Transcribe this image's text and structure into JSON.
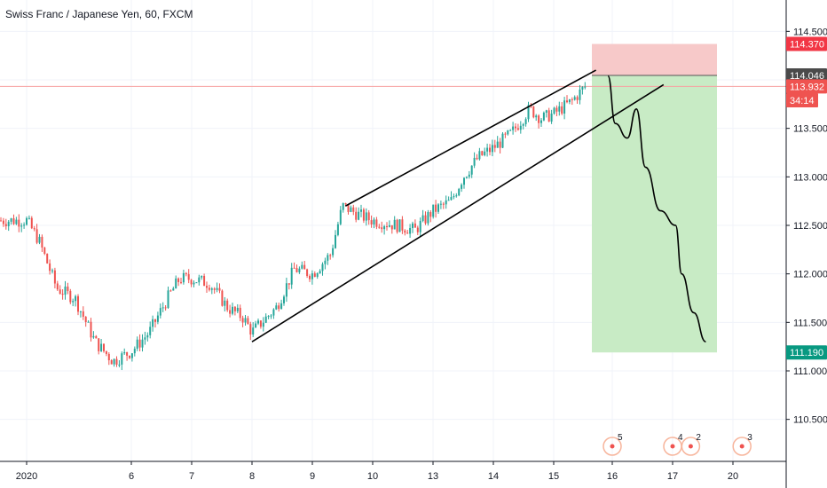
{
  "chart_title": "Swiss Franc / Japanese Yen, 60, FXCM",
  "colors": {
    "up": "#26a69a",
    "down": "#ef5350",
    "grid": "#f0f3fa",
    "axis": "#131722",
    "stop_zone": "#f7c9c9",
    "target_zone": "#c8ebc5",
    "entry_tag": "#4a4a4a",
    "stop_tag": "#f23645",
    "target_tag": "#089981",
    "price_tag": "#ef5350",
    "price_line": "#f7a1a1"
  },
  "chart_data": {
    "type": "candlestick",
    "title": "Swiss Franc / Japanese Yen, 60, FXCM",
    "x_tick_labels": [
      "2020",
      "6",
      "7",
      "8",
      "9",
      "10",
      "13",
      "14",
      "15",
      "16",
      "17",
      "20"
    ],
    "y_ticks": [
      110.5,
      111.0,
      111.5,
      112.0,
      112.5,
      113.0,
      113.5,
      114.0,
      114.5
    ],
    "y_tick_labels": [
      "110.500",
      "111.000",
      "111.500",
      "112.000",
      "112.500",
      "113.000",
      "113.500",
      "114.000",
      "114.500"
    ],
    "ylim": [
      110.07,
      115.0
    ],
    "grid": true,
    "price_path": [
      [
        "2020",
        112.55
      ],
      [
        "2020.2",
        112.35
      ],
      [
        "2020.5",
        111.85
      ],
      [
        "2020.8",
        111.75
      ],
      [
        "6-0.6",
        111.3
      ],
      [
        "6-0.3",
        111.1
      ],
      [
        "6",
        111.2
      ],
      [
        "6.3",
        111.4
      ],
      [
        "6.6",
        111.75
      ],
      [
        "7-0.2",
        111.95
      ],
      [
        "7",
        111.95
      ],
      [
        "7.3",
        111.9
      ],
      [
        "7.6",
        111.65
      ],
      [
        "7.85",
        111.55
      ],
      [
        "8",
        111.4
      ],
      [
        "8.4",
        111.65
      ],
      [
        "8.7",
        112.05
      ],
      [
        "9",
        112.0
      ],
      [
        "9.3",
        112.2
      ],
      [
        "9.5",
        112.7
      ],
      [
        "9.8",
        112.6
      ],
      [
        "10",
        112.55
      ],
      [
        "10.4",
        112.5
      ],
      [
        "10.7",
        112.45
      ],
      [
        "13",
        112.65
      ],
      [
        "13.3",
        112.75
      ],
      [
        "13.5",
        113.0
      ],
      [
        "13.75",
        113.2
      ],
      [
        "14",
        113.3
      ],
      [
        "14.3",
        113.45
      ],
      [
        "14.6",
        113.7
      ],
      [
        "14.8",
        113.6
      ],
      [
        "15",
        113.65
      ],
      [
        "15.3",
        113.78
      ],
      [
        "15.55",
        113.95
      ]
    ],
    "ohlc": [],
    "channel_upper": {
      "from": [
        "9.55",
        112.7
      ],
      "to": [
        "15.7",
        114.1
      ]
    },
    "channel_lower": {
      "from": [
        "8",
        111.3
      ],
      "to": [
        "16.85",
        113.95
      ]
    },
    "stop_zone": {
      "from_price": 114.046,
      "to_price": 114.37
    },
    "target_zone": {
      "from_price": 111.19,
      "to_price": 114.046
    },
    "projection_path": [
      [
        "15.9",
        114.04
      ],
      [
        "16.05",
        113.55
      ],
      [
        "16.25",
        113.4
      ],
      [
        "16.4",
        113.7
      ],
      [
        "16.55",
        113.1
      ],
      [
        "16.8",
        112.65
      ],
      [
        "17.05",
        112.5
      ],
      [
        "17.15",
        112.0
      ],
      [
        "17.35",
        111.6
      ],
      [
        "17.55",
        111.3
      ]
    ],
    "price_labels": [
      {
        "value": 114.37,
        "label": "114.370",
        "role": "stop"
      },
      {
        "value": 114.046,
        "label": "114.046",
        "role": "entry"
      },
      {
        "value": 113.932,
        "label": "113.932",
        "role": "last"
      },
      {
        "value": 113.79,
        "label": "34:14",
        "role": "countdown"
      },
      {
        "value": 111.19,
        "label": "111.190",
        "role": "target"
      }
    ],
    "events": [
      {
        "x": "16",
        "count": "5"
      },
      {
        "x": "17",
        "count": "4"
      },
      {
        "x": "17.3",
        "count": "2"
      },
      {
        "x": "20.15",
        "count": "3"
      }
    ]
  }
}
